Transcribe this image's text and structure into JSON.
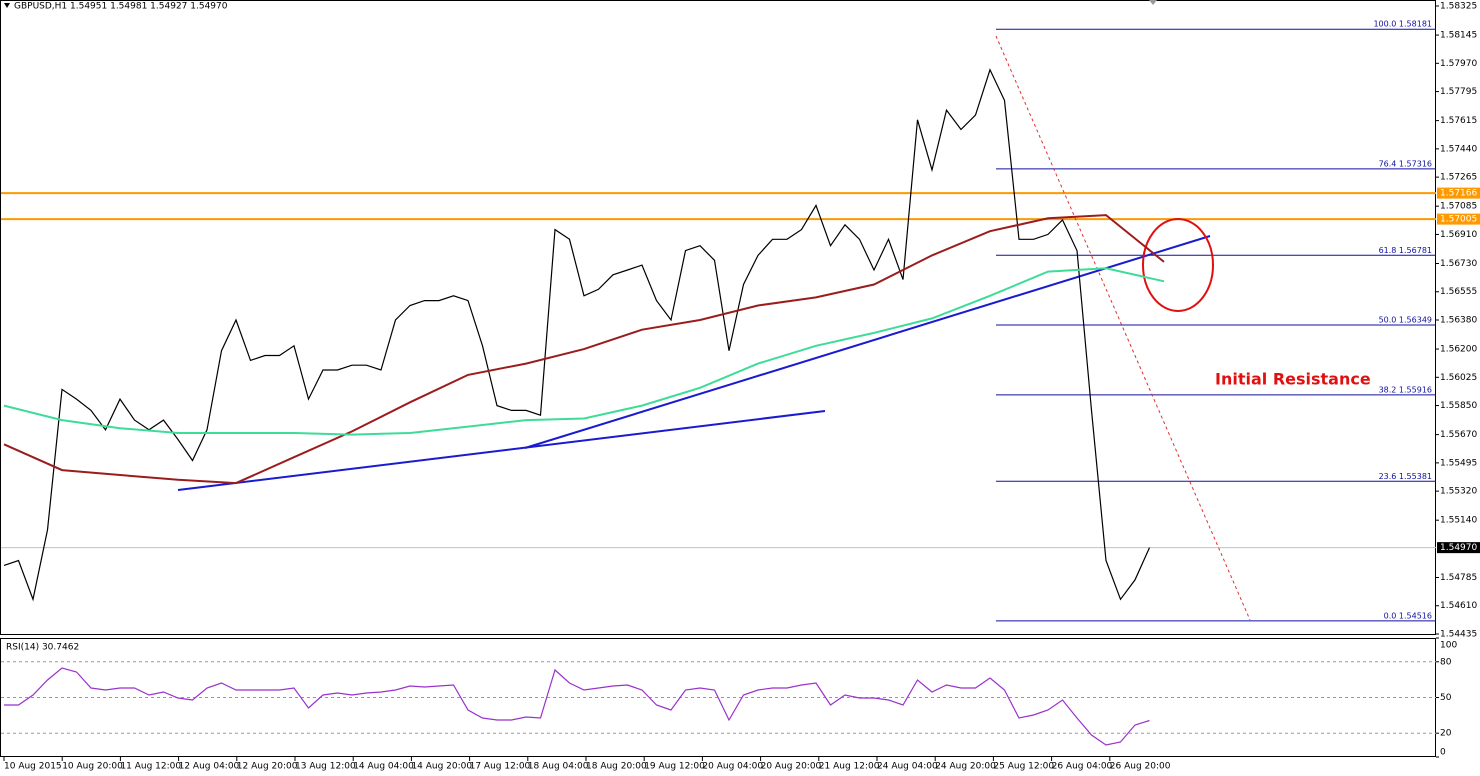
{
  "header": "GBPUSD,H1  1.54951 1.54981 1.54927 1.54970",
  "time_labels": [
    "10 Aug 2015",
    "10 Aug 20:00",
    "11 Aug 12:00",
    "12 Aug 04:00",
    "12 Aug 20:00",
    "13 Aug 12:00",
    "14 Aug 04:00",
    "14 Aug 20:00",
    "17 Aug 12:00",
    "18 Aug 04:00",
    "18 Aug 20:00",
    "19 Aug 12:00",
    "20 Aug 04:00",
    "20 Aug 20:00",
    "21 Aug 12:00",
    "24 Aug 04:00",
    "24 Aug 20:00",
    "25 Aug 12:00",
    "26 Aug 04:00",
    "26 Aug 20:00"
  ],
  "chart_data": [
    {
      "type": "line",
      "ylim": [
        1.54435,
        1.58325
      ],
      "yticks": [
        1.58325,
        1.58145,
        {
          "value": 1.5797,
          "label": "1.57970"
        },
        1.57795,
        1.57615,
        {
          "value": 1.5744,
          "label": "1.57440"
        },
        1.57265,
        1.57085,
        {
          "value": 1.5691,
          "label": "1.56910"
        },
        {
          "value": 1.5673,
          "label": "1.56730"
        },
        1.56555,
        {
          "value": 1.5638,
          "label": "1.56380"
        },
        {
          "value": 1.562,
          "label": "1.56200"
        },
        1.56025,
        {
          "value": 1.5585,
          "label": "1.55850"
        },
        {
          "value": 1.5567,
          "label": "1.55670"
        },
        1.55495,
        {
          "value": 1.5532,
          "label": "1.55320"
        },
        {
          "value": 1.5514,
          "label": "1.55140"
        },
        1.54785,
        {
          "value": 1.5461,
          "label": "1.54610"
        },
        1.54435
      ],
      "series": [
        {
          "color": "#000000",
          "values": [
            1.5486,
            1.5489,
            1.5465,
            1.5508,
            1.5595,
            1.5589,
            1.5582,
            1.557,
            1.5589,
            1.5576,
            1.557,
            1.5576,
            1.5564,
            1.5551,
            1.557,
            1.5619,
            1.5638,
            1.5613,
            1.5616,
            1.5616,
            1.5622,
            1.5589,
            1.5607,
            1.5607,
            1.561,
            1.561,
            1.5607,
            1.5638,
            1.5647,
            1.565,
            1.565,
            1.5653,
            1.565,
            1.5622,
            1.5585,
            1.5582,
            1.5582,
            1.5579,
            1.5694,
            1.5688,
            1.5653,
            1.5657,
            1.5666,
            1.5669,
            1.5672,
            1.565,
            1.5638,
            1.5681,
            1.5684,
            1.5675,
            1.5619,
            1.566,
            1.5678,
            1.5688,
            1.5688,
            1.5694,
            1.5709,
            1.5684,
            1.5697,
            1.5688,
            1.5669,
            1.5688,
            1.5663,
            1.5762,
            1.5731,
            1.5768,
            1.5756,
            1.5765,
            1.5793,
            1.5774,
            1.5688,
            1.5688,
            1.5691,
            1.57,
            1.5681,
            1.5582,
            1.5489,
            1.5465,
            1.5477,
            1.5497
          ]
        },
        {
          "color": "#9b1c1c",
          "values": [
            1.5561,
            1.5545,
            1.5542,
            1.5539,
            1.5537,
            1.5553,
            1.5569,
            1.5587,
            1.5604,
            1.5611,
            1.562,
            1.5632,
            1.5638,
            1.5647,
            1.5652,
            1.566,
            1.5678,
            1.5693,
            1.5701,
            1.5703,
            1.5674
          ]
        },
        {
          "color": "#3ddc97",
          "values": [
            1.5585,
            1.5576,
            1.5571,
            1.5568,
            1.5568,
            1.5568,
            1.5567,
            1.5568,
            1.5572,
            1.5576,
            1.5577,
            1.5585,
            1.5596,
            1.5611,
            1.5622,
            1.563,
            1.5639,
            1.5653,
            1.5668,
            1.567,
            1.5662
          ]
        }
      ],
      "levels": [
        {
          "value": 1.57166,
          "color": "#ff9900"
        },
        {
          "value": 1.57005,
          "color": "#ff9900"
        }
      ],
      "current": {
        "value": 1.5497,
        "label": "1.54970"
      },
      "fib": [
        {
          "value": 1.58181,
          "label": "100.0 1.58181"
        },
        {
          "value": 1.57316,
          "label": "76.4 1.57316"
        },
        {
          "value": 1.56781,
          "label": "61.8 1.56781"
        },
        {
          "value": 1.56349,
          "label": "50.0 1.56349"
        },
        {
          "value": 1.55916,
          "label": "38.2 1.55916"
        },
        {
          "value": 1.55381,
          "label": "23.6 1.55381"
        },
        {
          "value": 1.54516,
          "label": "0.0 1.54516"
        }
      ],
      "annotation": "Initial Resistance"
    },
    {
      "type": "line",
      "title": "RSI(14) 30.7462",
      "ylim": [
        0,
        100
      ],
      "yticks": [
        100,
        80,
        50,
        20,
        0
      ],
      "series": [
        {
          "color": "#9932cc",
          "values": [
            43.7,
            43.7,
            52.1,
            64.7,
            74.8,
            71.4,
            58.0,
            56.3,
            58.0,
            58.0,
            52.1,
            54.6,
            49.6,
            47.9,
            58.0,
            62.2,
            56.3,
            56.3,
            56.3,
            56.3,
            58.0,
            41.2,
            52.1,
            53.8,
            52.1,
            53.8,
            54.6,
            56.3,
            59.7,
            58.8,
            59.7,
            60.5,
            39.5,
            32.8,
            31.1,
            31.1,
            33.6,
            32.8,
            73.1,
            62.2,
            56.3,
            58.0,
            59.7,
            60.5,
            56.3,
            43.7,
            39.5,
            56.3,
            58.0,
            56.3,
            31.1,
            52.1,
            56.3,
            58.0,
            58.0,
            60.5,
            62.2,
            43.7,
            52.1,
            49.6,
            49.6,
            47.9,
            43.7,
            64.7,
            54.6,
            60.5,
            58.0,
            58.0,
            66.4,
            56.3,
            32.8,
            35.3,
            39.5,
            47.9,
            32.8,
            18.5,
            10.1,
            12.6,
            26.9,
            30.7
          ]
        }
      ]
    }
  ]
}
